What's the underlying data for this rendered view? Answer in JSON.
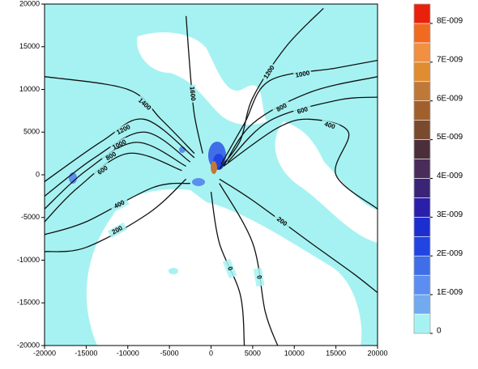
{
  "chart_data": {
    "type": "contour",
    "xlim": [
      -20000,
      20000
    ],
    "ylim": [
      -20000,
      20000
    ],
    "xticks": [
      -20000,
      -15000,
      -10000,
      -5000,
      0,
      5000,
      10000,
      15000,
      20000
    ],
    "yticks": [
      -20000,
      -15000,
      -10000,
      -5000,
      0,
      5000,
      10000,
      15000,
      20000
    ],
    "contours": [
      {
        "level": 1600,
        "x": [
          -3000,
          -2500,
          -2000,
          -1000
        ],
        "y": [
          18600,
          12000,
          7000,
          2500
        ]
      },
      {
        "level": 1200,
        "x": [
          13500,
          9000,
          5000,
          3500,
          1000
        ],
        "y": [
          19500,
          15000,
          9000,
          4000,
          700
        ]
      },
      {
        "level": 1000,
        "x": [
          20000,
          15000,
          7000,
          4000,
          1200
        ],
        "y": [
          13400,
          12500,
          11000,
          6000,
          1200
        ]
      },
      {
        "level": 800,
        "x": [
          20000,
          12000,
          5000,
          1500
        ],
        "y": [
          11500,
          9700,
          6000,
          1000
        ]
      },
      {
        "level": 600,
        "x": [
          20000,
          15000,
          7000,
          2000
        ],
        "y": [
          9100,
          8700,
          6300,
          1500
        ]
      },
      {
        "level": 400,
        "x": [
          1500,
          8000,
          12000,
          16500,
          15000,
          20000
        ],
        "y": [
          1000,
          5500,
          6500,
          5000,
          0,
          -4000
        ]
      },
      {
        "level": 200,
        "x": [
          1000,
          5000,
          12000,
          17000,
          20000
        ],
        "y": [
          -500,
          -3000,
          -8000,
          -11500,
          -13800
        ]
      },
      {
        "level": 1400,
        "x": [
          -20000,
          -10000,
          -6000,
          -2000
        ],
        "y": [
          11500,
          10000,
          6500,
          2500
        ]
      },
      {
        "level": 1200,
        "x": [
          -2000,
          -8000,
          -13000,
          -20000
        ],
        "y": [
          2000,
          6500,
          4000,
          -800
        ]
      },
      {
        "level": 1000,
        "x": [
          -2500,
          -8000,
          -14000,
          -20000
        ],
        "y": [
          1500,
          5000,
          2000,
          -2500
        ]
      },
      {
        "level": 800,
        "x": [
          -3000,
          -9000,
          -15000,
          -20000
        ],
        "y": [
          1000,
          3800,
          500,
          -4000
        ]
      },
      {
        "level": 600,
        "x": [
          -3500,
          -10000,
          -16000,
          -20000
        ],
        "y": [
          500,
          2500,
          -1500,
          -5500
        ]
      },
      {
        "level": 400,
        "x": [
          -2500,
          -7000,
          -15000,
          -20000
        ],
        "y": [
          -1000,
          -1500,
          -5500,
          -7000
        ]
      },
      {
        "level": 200,
        "x": [
          -3000,
          -7500,
          -15000,
          -20000
        ],
        "y": [
          -500,
          -4500,
          -8500,
          -9000
        ]
      },
      {
        "level": 0,
        "x": [
          1000,
          5000,
          6500,
          8000
        ],
        "y": [
          -1000,
          -8000,
          -16000,
          -20000
        ]
      },
      {
        "level": 0,
        "x": [
          0,
          1000,
          3500,
          4000
        ],
        "y": [
          -2000,
          -8000,
          -14000,
          -20000
        ]
      }
    ],
    "colorbar": {
      "bounds": [
        0,
        5e-10,
        1e-09,
        1.5e-09,
        2e-09,
        2.5e-09,
        3e-09,
        3.5e-09,
        4e-09,
        4.5e-09,
        5e-09,
        5.5e-09,
        6e-09,
        6.5e-09,
        7e-09,
        7.5e-09,
        8e-09,
        8.5e-09
      ],
      "colors": [
        "#a6f2f2",
        "#72aaf0",
        "#5b8ef0",
        "#3f6ee8",
        "#2244e0",
        "#1c2ed0",
        "#2a1fa8",
        "#3a2478",
        "#4a2c5a",
        "#4a2e3a",
        "#7a4a2e",
        "#a0602e",
        "#c07838",
        "#e08c30",
        "#f09040",
        "#f06a20",
        "#e8200c"
      ],
      "ticks": [
        0,
        {
          "value": 1e-09,
          "label": "1E-009"
        },
        {
          "value": 2e-09,
          "label": "2E-009"
        },
        {
          "value": 3e-09,
          "label": "3E-009"
        },
        {
          "value": 4e-09,
          "label": "4E-009"
        },
        {
          "value": 5e-09,
          "label": "5E-009"
        },
        {
          "value": 6e-09,
          "label": "6E-009"
        },
        {
          "value": 7e-09,
          "label": "7E-009"
        },
        {
          "value": 8e-09,
          "label": "8E-009"
        }
      ]
    }
  }
}
